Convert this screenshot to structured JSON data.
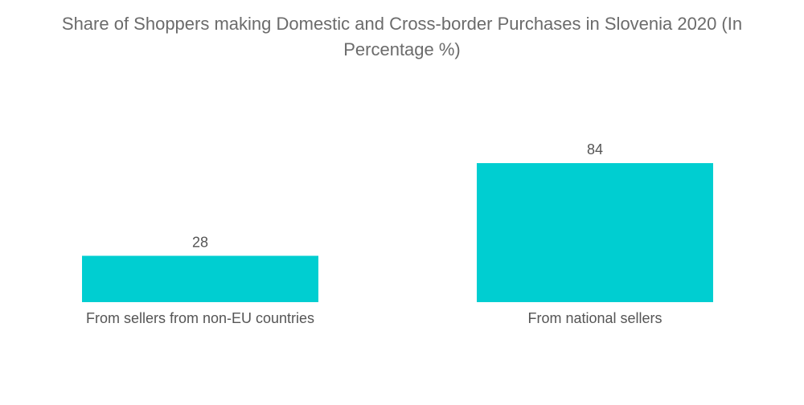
{
  "chart_data": {
    "type": "bar",
    "title": "Share of Shoppers making Domestic and Cross-border Purchases in Slovenia 2020 (In Percentage %)",
    "categories": [
      "From sellers from non-EU countries",
      "From national sellers"
    ],
    "values": [
      28,
      84
    ],
    "xlabel": "",
    "ylabel": "",
    "ylim": [
      0,
      84
    ],
    "grid": false,
    "bar_color": "#00CED1",
    "text_color": "#555555",
    "title_color": "#6b6b6b"
  }
}
